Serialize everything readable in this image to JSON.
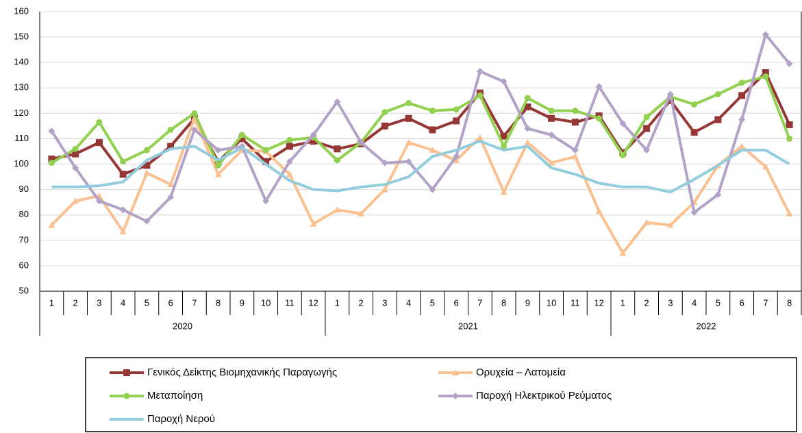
{
  "chart_data": {
    "type": "line",
    "categories": [
      "1",
      "2",
      "3",
      "4",
      "5",
      "6",
      "7",
      "8",
      "9",
      "10",
      "11",
      "12",
      "1",
      "2",
      "3",
      "4",
      "5",
      "6",
      "7",
      "8",
      "9",
      "10",
      "11",
      "12",
      "1",
      "2",
      "3",
      "4",
      "5",
      "6",
      "7",
      "8"
    ],
    "year_labels": [
      "2020",
      "2021",
      "2022"
    ],
    "ylim": [
      50,
      160
    ],
    "yticks": [
      50,
      60,
      70,
      80,
      90,
      100,
      110,
      120,
      130,
      140,
      150,
      160
    ],
    "grid": true,
    "series": [
      {
        "name": "Γενικός Δείκτης Βιομηχανικής Παραγωγής",
        "color": "#953735",
        "marker": "square",
        "values": [
          102,
          104,
          108.5,
          96,
          99.5,
          107,
          118,
          101,
          110,
          101,
          107,
          109,
          106,
          108,
          115,
          118,
          113.5,
          117,
          128,
          111,
          122.5,
          118,
          116.5,
          119,
          104.5,
          114,
          125,
          112.5,
          117.5,
          127,
          136,
          115.5
        ]
      },
      {
        "name": "Ορυχεία – Λατομεία",
        "color": "#fac090",
        "marker": "triangle",
        "values": [
          76,
          85.5,
          87.5,
          73.5,
          96.5,
          92,
          118,
          96,
          105.5,
          105,
          96,
          76.5,
          82,
          80.5,
          90,
          108.5,
          105.5,
          101.5,
          110.5,
          89,
          108.5,
          100.5,
          103,
          81.5,
          65,
          77,
          76,
          85,
          99.5,
          107,
          99,
          80.5
        ]
      },
      {
        "name": "Μεταποίηση",
        "color": "#92d050",
        "marker": "circle",
        "values": [
          100.5,
          106,
          116.5,
          101,
          105.5,
          113.5,
          120,
          99.5,
          111.5,
          105.5,
          109.5,
          110.5,
          101.5,
          108.5,
          120.5,
          124,
          121,
          121.5,
          127,
          107,
          126,
          121,
          121,
          118,
          103.5,
          118.5,
          126.5,
          123.5,
          127.5,
          132,
          134.5,
          110
        ]
      },
      {
        "name": "Παροχή Ηλεκτρικού Ρεύματος",
        "color": "#b3a2c7",
        "marker": "diamond",
        "values": [
          113,
          98.5,
          85.5,
          82,
          77.5,
          87,
          113.5,
          105.5,
          107,
          85.5,
          101,
          111.5,
          124.5,
          108.5,
          100.5,
          101,
          90,
          103,
          136.5,
          132.5,
          114,
          111.5,
          105.5,
          130.5,
          116,
          105.5,
          127.5,
          81,
          88,
          117.5,
          151,
          139.5
        ]
      },
      {
        "name": "Παροχή Νερού",
        "color": "#93cddd",
        "marker": "none",
        "values": [
          91,
          91,
          91.5,
          93,
          101.5,
          106,
          107,
          101.5,
          106.5,
          100,
          93.5,
          90,
          89.5,
          91,
          92,
          95,
          103,
          105.5,
          109,
          105.5,
          107,
          98.5,
          96,
          92.5,
          91,
          91,
          89,
          94,
          99.5,
          105.5,
          105.5,
          100
        ]
      }
    ]
  }
}
